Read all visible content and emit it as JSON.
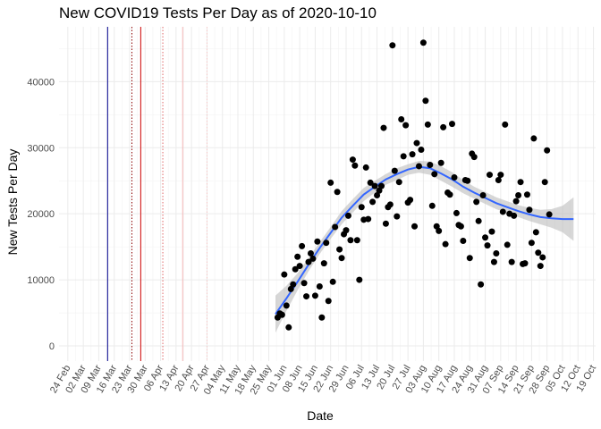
{
  "chart_data": {
    "type": "scatter",
    "title": "New COVID19 Tests Per Day as of 2020-10-10",
    "xlabel": "Date",
    "ylabel": "New Tests Per Day",
    "xlim": [
      "2020-02-20",
      "2020-10-20"
    ],
    "ylim": [
      -2300,
      48300
    ],
    "y_ticks": [
      0,
      10000,
      20000,
      30000,
      40000
    ],
    "x_ticks": [
      "2020-02-24",
      "2020-03-02",
      "2020-03-09",
      "2020-03-16",
      "2020-03-23",
      "2020-03-30",
      "2020-04-06",
      "2020-04-13",
      "2020-04-20",
      "2020-04-27",
      "2020-05-04",
      "2020-05-11",
      "2020-05-18",
      "2020-05-25",
      "2020-06-01",
      "2020-06-08",
      "2020-06-15",
      "2020-06-22",
      "2020-06-29",
      "2020-07-06",
      "2020-07-13",
      "2020-07-20",
      "2020-07-27",
      "2020-08-03",
      "2020-08-10",
      "2020-08-17",
      "2020-08-24",
      "2020-08-31",
      "2020-09-07",
      "2020-09-14",
      "2020-09-21",
      "2020-09-28",
      "2020-10-05",
      "2020-10-12",
      "2020-10-19"
    ],
    "x_tick_labels": [
      "24 Feb",
      "02 Mar",
      "09 Mar",
      "16 Mar",
      "23 Mar",
      "30 Mar",
      "06 Apr",
      "13 Apr",
      "20 Apr",
      "27 Apr",
      "04 May",
      "11 May",
      "18 May",
      "25 May",
      "01 Jun",
      "08 Jun",
      "15 Jun",
      "22 Jun",
      "29 Jun",
      "06 Jul",
      "13 Jul",
      "20 Jul",
      "27 Jul",
      "03 Aug",
      "10 Aug",
      "17 Aug",
      "24 Aug",
      "31 Aug",
      "07 Sep",
      "14 Sep",
      "21 Sep",
      "28 Sep",
      "05 Oct",
      "12 Oct",
      "19 Oct"
    ],
    "grid": true,
    "vlines": [
      {
        "date": "2020-03-13",
        "color": "#00008b",
        "style": "solid"
      },
      {
        "date": "2020-03-24",
        "color": "#8b0000",
        "style": "dotted"
      },
      {
        "date": "2020-03-28",
        "color": "#cc0000",
        "style": "solid"
      },
      {
        "date": "2020-04-07",
        "color": "#e06666",
        "style": "dotted"
      },
      {
        "date": "2020-04-16",
        "color": "#f4b6b6",
        "style": "solid"
      },
      {
        "date": "2020-04-27",
        "color": "#f6c8c8",
        "style": "dotted"
      }
    ],
    "points_color": "#000000",
    "smooth": {
      "color": "#3366ff",
      "band_color": "#bdbdbd",
      "x": [
        "2020-05-28",
        "2020-06-02",
        "2020-06-07",
        "2020-06-12",
        "2020-06-17",
        "2020-06-22",
        "2020-06-27",
        "2020-07-02",
        "2020-07-07",
        "2020-07-12",
        "2020-07-17",
        "2020-07-22",
        "2020-07-27",
        "2020-08-01",
        "2020-08-06",
        "2020-08-11",
        "2020-08-16",
        "2020-08-21",
        "2020-08-26",
        "2020-08-31",
        "2020-09-05",
        "2020-09-10",
        "2020-09-15",
        "2020-09-20",
        "2020-09-25",
        "2020-09-30",
        "2020-10-05",
        "2020-10-10"
      ],
      "y": [
        4800,
        7200,
        9700,
        12300,
        14800,
        17100,
        19400,
        21200,
        22900,
        24100,
        25200,
        26000,
        26700,
        27100,
        26900,
        26100,
        25200,
        24100,
        23200,
        22400,
        21600,
        21000,
        20400,
        19900,
        19500,
        19300,
        19200,
        19200
      ],
      "lower": [
        2000,
        5300,
        8400,
        11300,
        13900,
        16200,
        18400,
        20200,
        21900,
        23200,
        24400,
        25100,
        25900,
        26200,
        25900,
        25000,
        24100,
        23100,
        22300,
        21500,
        20700,
        20100,
        19500,
        18900,
        18400,
        17900,
        17200,
        15900
      ],
      "upper": [
        7600,
        9100,
        11000,
        13300,
        15700,
        18000,
        20400,
        22200,
        23900,
        25000,
        26000,
        26900,
        27500,
        28000,
        27900,
        27200,
        26300,
        25100,
        24100,
        23300,
        22500,
        21900,
        21300,
        20900,
        20600,
        20700,
        21200,
        22500
      ]
    },
    "points": [
      {
        "x": "2020-05-29",
        "y": 4300
      },
      {
        "x": "2020-05-30",
        "y": 4900
      },
      {
        "x": "2020-05-31",
        "y": 4700
      },
      {
        "x": "2020-06-01",
        "y": 10800
      },
      {
        "x": "2020-06-02",
        "y": 6100
      },
      {
        "x": "2020-06-03",
        "y": 2800
      },
      {
        "x": "2020-06-04",
        "y": 8600
      },
      {
        "x": "2020-06-05",
        "y": 9300
      },
      {
        "x": "2020-06-06",
        "y": 11600
      },
      {
        "x": "2020-06-07",
        "y": 13500
      },
      {
        "x": "2020-06-08",
        "y": 12100
      },
      {
        "x": "2020-06-09",
        "y": 15100
      },
      {
        "x": "2020-06-10",
        "y": 9500
      },
      {
        "x": "2020-06-11",
        "y": 7500
      },
      {
        "x": "2020-06-12",
        "y": 12700
      },
      {
        "x": "2020-06-13",
        "y": 14000
      },
      {
        "x": "2020-06-14",
        "y": 13200
      },
      {
        "x": "2020-06-15",
        "y": 7600
      },
      {
        "x": "2020-06-16",
        "y": 15800
      },
      {
        "x": "2020-06-17",
        "y": 9000
      },
      {
        "x": "2020-06-18",
        "y": 4300
      },
      {
        "x": "2020-06-19",
        "y": 12500
      },
      {
        "x": "2020-06-20",
        "y": 15600
      },
      {
        "x": "2020-06-21",
        "y": 6800
      },
      {
        "x": "2020-06-22",
        "y": 24700
      },
      {
        "x": "2020-06-23",
        "y": 9700
      },
      {
        "x": "2020-06-24",
        "y": 18000
      },
      {
        "x": "2020-06-25",
        "y": 23300
      },
      {
        "x": "2020-06-26",
        "y": 14600
      },
      {
        "x": "2020-06-27",
        "y": 13300
      },
      {
        "x": "2020-06-28",
        "y": 16900
      },
      {
        "x": "2020-06-29",
        "y": 17500
      },
      {
        "x": "2020-06-30",
        "y": 19700
      },
      {
        "x": "2020-07-01",
        "y": 16000
      },
      {
        "x": "2020-07-02",
        "y": 28200
      },
      {
        "x": "2020-07-03",
        "y": 27300
      },
      {
        "x": "2020-07-04",
        "y": 16000
      },
      {
        "x": "2020-07-05",
        "y": 10000
      },
      {
        "x": "2020-07-06",
        "y": 21000
      },
      {
        "x": "2020-07-07",
        "y": 19100
      },
      {
        "x": "2020-07-08",
        "y": 27000
      },
      {
        "x": "2020-07-09",
        "y": 19200
      },
      {
        "x": "2020-07-10",
        "y": 24700
      },
      {
        "x": "2020-07-11",
        "y": 21800
      },
      {
        "x": "2020-07-12",
        "y": 24200
      },
      {
        "x": "2020-07-13",
        "y": 22800
      },
      {
        "x": "2020-07-14",
        "y": 23500
      },
      {
        "x": "2020-07-15",
        "y": 24200
      },
      {
        "x": "2020-07-16",
        "y": 33000
      },
      {
        "x": "2020-07-17",
        "y": 18500
      },
      {
        "x": "2020-07-18",
        "y": 21000
      },
      {
        "x": "2020-07-19",
        "y": 21400
      },
      {
        "x": "2020-07-20",
        "y": 45500
      },
      {
        "x": "2020-07-21",
        "y": 26500
      },
      {
        "x": "2020-07-22",
        "y": 19600
      },
      {
        "x": "2020-07-23",
        "y": 24800
      },
      {
        "x": "2020-07-24",
        "y": 34300
      },
      {
        "x": "2020-07-25",
        "y": 28700
      },
      {
        "x": "2020-07-26",
        "y": 33400
      },
      {
        "x": "2020-07-27",
        "y": 21700
      },
      {
        "x": "2020-07-28",
        "y": 22100
      },
      {
        "x": "2020-07-29",
        "y": 29000
      },
      {
        "x": "2020-07-30",
        "y": 18100
      },
      {
        "x": "2020-07-31",
        "y": 30700
      },
      {
        "x": "2020-08-01",
        "y": 27200
      },
      {
        "x": "2020-08-02",
        "y": 29700
      },
      {
        "x": "2020-08-03",
        "y": 45900
      },
      {
        "x": "2020-08-04",
        "y": 37100
      },
      {
        "x": "2020-08-05",
        "y": 33500
      },
      {
        "x": "2020-08-06",
        "y": 27400
      },
      {
        "x": "2020-08-07",
        "y": 21200
      },
      {
        "x": "2020-08-08",
        "y": 26000
      },
      {
        "x": "2020-08-09",
        "y": 18100
      },
      {
        "x": "2020-08-10",
        "y": 17400
      },
      {
        "x": "2020-08-11",
        "y": 27700
      },
      {
        "x": "2020-08-12",
        "y": 33100
      },
      {
        "x": "2020-08-13",
        "y": 15400
      },
      {
        "x": "2020-08-14",
        "y": 23200
      },
      {
        "x": "2020-08-15",
        "y": 22900
      },
      {
        "x": "2020-08-16",
        "y": 33600
      },
      {
        "x": "2020-08-17",
        "y": 25500
      },
      {
        "x": "2020-08-18",
        "y": 20100
      },
      {
        "x": "2020-08-19",
        "y": 18300
      },
      {
        "x": "2020-08-20",
        "y": 18100
      },
      {
        "x": "2020-08-21",
        "y": 15900
      },
      {
        "x": "2020-08-22",
        "y": 25100
      },
      {
        "x": "2020-08-23",
        "y": 25000
      },
      {
        "x": "2020-08-24",
        "y": 13300
      },
      {
        "x": "2020-08-25",
        "y": 29100
      },
      {
        "x": "2020-08-26",
        "y": 28600
      },
      {
        "x": "2020-08-27",
        "y": 21800
      },
      {
        "x": "2020-08-28",
        "y": 18900
      },
      {
        "x": "2020-08-29",
        "y": 9300
      },
      {
        "x": "2020-08-30",
        "y": 22800
      },
      {
        "x": "2020-08-31",
        "y": 16400
      },
      {
        "x": "2020-09-01",
        "y": 15200
      },
      {
        "x": "2020-09-02",
        "y": 25900
      },
      {
        "x": "2020-09-03",
        "y": 17300
      },
      {
        "x": "2020-09-04",
        "y": 12700
      },
      {
        "x": "2020-09-05",
        "y": 14000
      },
      {
        "x": "2020-09-06",
        "y": 25100
      },
      {
        "x": "2020-09-07",
        "y": 25900
      },
      {
        "x": "2020-09-08",
        "y": 20300
      },
      {
        "x": "2020-09-09",
        "y": 33500
      },
      {
        "x": "2020-09-10",
        "y": 15300
      },
      {
        "x": "2020-09-11",
        "y": 20000
      },
      {
        "x": "2020-09-12",
        "y": 12700
      },
      {
        "x": "2020-09-13",
        "y": 19700
      },
      {
        "x": "2020-09-14",
        "y": 21900
      },
      {
        "x": "2020-09-15",
        "y": 22800
      },
      {
        "x": "2020-09-16",
        "y": 24800
      },
      {
        "x": "2020-09-17",
        "y": 12400
      },
      {
        "x": "2020-09-18",
        "y": 12500
      },
      {
        "x": "2020-09-19",
        "y": 22900
      },
      {
        "x": "2020-09-20",
        "y": 20600
      },
      {
        "x": "2020-09-21",
        "y": 15600
      },
      {
        "x": "2020-09-22",
        "y": 31400
      },
      {
        "x": "2020-09-23",
        "y": 17200
      },
      {
        "x": "2020-09-24",
        "y": 14100
      },
      {
        "x": "2020-09-25",
        "y": 12100
      },
      {
        "x": "2020-09-26",
        "y": 13400
      },
      {
        "x": "2020-09-27",
        "y": 24800
      },
      {
        "x": "2020-09-28",
        "y": 29600
      },
      {
        "x": "2020-09-29",
        "y": 19900
      }
    ]
  }
}
